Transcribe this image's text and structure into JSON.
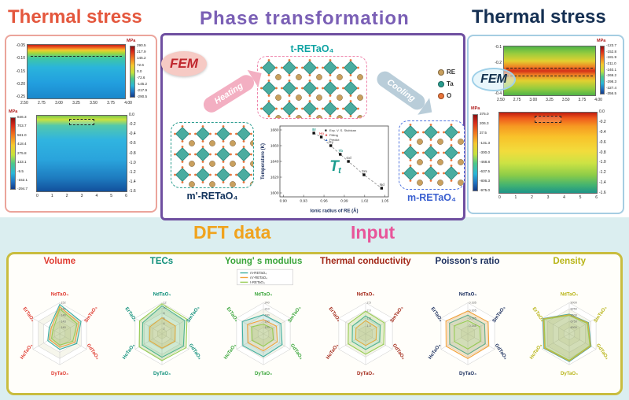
{
  "header": {
    "thermal_stress_left": "Thermal stress",
    "phase_transformation": "Phase  transformation",
    "thermal_stress_right": "Thermal stress"
  },
  "bottom_header": {
    "dft_data": "DFT data",
    "input": "Input"
  },
  "fem": {
    "left_label": "FEM",
    "right_label": "FEM"
  },
  "process": {
    "heating": "Heating",
    "cooling": "Cooling"
  },
  "phases": {
    "t": "t-RETaO₄",
    "m_prime": "m'-RETaO₄",
    "m": "m-RETaO₄"
  },
  "atom_legend": [
    {
      "label": "RE",
      "color": "#c9a05e"
    },
    {
      "label": "Ta",
      "color": "#2a9d8f"
    },
    {
      "label": "O",
      "color": "#e8743a"
    }
  ],
  "left_panel": {
    "plot_top": {
      "unit": "MPa",
      "colorbar_ticks": [
        "290.5",
        "217.9",
        "145.2",
        "72.6",
        "0.0",
        "-72.6",
        "-145.2",
        "-217.9",
        "-290.5"
      ],
      "x_ticks": [
        "2.50",
        "2.75",
        "3.00",
        "3.25",
        "3.50",
        "3.75",
        "4.00"
      ],
      "y_ticks": [
        "-0.05",
        "-0.10",
        "-0.15",
        "-0.20",
        "-0.25"
      ]
    },
    "plot_bottom": {
      "unit": "MPa",
      "colorbar_ticks": [
        "846.3",
        "703.7",
        "561.0",
        "418.4",
        "275.8",
        "133.1",
        "-9.5",
        "-152.1",
        "-294.7"
      ],
      "right_ticks": [
        "0.0",
        "-0.2",
        "-0.4",
        "-0.6",
        "-0.8",
        "-1.0",
        "-1.2",
        "-1.4",
        "-1.6"
      ],
      "x_ticks": [
        "0",
        "1",
        "2",
        "3",
        "4",
        "5",
        "6"
      ]
    }
  },
  "right_panel": {
    "plot_top": {
      "unit": "MPa",
      "colorbar_ticks": [
        "-123.7",
        "-152.8",
        "-181.9",
        "-211.0",
        "-240.1",
        "-269.2",
        "-298.3",
        "-327.4",
        "-356.5"
      ],
      "x_ticks": [
        "2.50",
        "2.75",
        "3.00",
        "3.25",
        "3.50",
        "3.75",
        "4.00"
      ],
      "y_ticks": [
        "-0.1",
        "-0.2",
        "-0.3",
        "-0.4"
      ]
    },
    "plot_bottom": {
      "unit": "MPa",
      "colorbar_ticks": [
        "375.0",
        "206.3",
        "37.5",
        "-131.3",
        "-300.0",
        "-468.8",
        "-637.5",
        "-806.3",
        "-975.0"
      ],
      "right_ticks": [
        "0.0",
        "-0.2",
        "-0.4",
        "-0.6",
        "-0.8",
        "-1.0",
        "-1.2",
        "-1.4",
        "-1.6"
      ],
      "x_ticks": [
        "0",
        "1",
        "2",
        "3",
        "4",
        "5",
        "6"
      ]
    }
  },
  "chart_data": [
    {
      "type": "scatter",
      "name": "phase-transformation-temperature",
      "title": "Tt",
      "xlabel": "Ionic radius of RE (Å)",
      "ylabel": "Temperature (K)",
      "xlim": [
        0.895,
        1.055
      ],
      "ylim": [
        1595,
        1685
      ],
      "x_ticks": [
        "0.90",
        "0.93",
        "0.96",
        "0.99",
        "1.02",
        "1.05"
      ],
      "y_ticks": [
        "1600",
        "1620",
        "1640",
        "1660",
        "1680"
      ],
      "legend": [
        "Exp. V. S. Stubican",
        "Fitting",
        "Predict"
      ],
      "legend_position": "top-right",
      "grid": false,
      "points": [
        {
          "label": "Er",
          "x": 0.945,
          "y": 1676,
          "color": "#2a9d8f"
        },
        {
          "label": "Ho",
          "x": 0.956,
          "y": 1671,
          "color": "#e06a6a"
        },
        {
          "label": "Dy",
          "x": 0.97,
          "y": 1660,
          "color": "#777777"
        },
        {
          "label": "Tb",
          "x": 0.984,
          "y": 1649,
          "color": "#2a9d8f"
        },
        {
          "label": "Gd",
          "x": 0.996,
          "y": 1640,
          "color": "#777777"
        },
        {
          "label": "Sm",
          "x": 1.019,
          "y": 1623,
          "color": "#777777"
        },
        {
          "label": "Nd",
          "x": 1.045,
          "y": 1606,
          "color": "#777777"
        }
      ]
    },
    {
      "type": "radar",
      "title": "Volume",
      "title_color": "#e03c31",
      "label_color": "#e03c31",
      "axes": [
        "NdTaO₄",
        "SmTaO₄",
        "GdTaO₄",
        "DyTaO₄",
        "HoTaO₄",
        "ErTaO₄"
      ],
      "rings": [
        140,
        143,
        146,
        149,
        152
      ],
      "ring_labels": [
        "140",
        "143",
        "146",
        "149",
        "152"
      ],
      "series": [
        {
          "name": "m-RETaO₄",
          "color": "#3fae9f",
          "values": [
            151.2,
            148.9,
            146.5,
            144.6,
            143.7,
            142.9
          ]
        },
        {
          "name": "m'-RETaO₄",
          "color": "#f2a23a",
          "values": [
            150.1,
            147.8,
            145.4,
            143.6,
            142.7,
            141.9
          ]
        },
        {
          "name": "t-RETaO₄",
          "color": "#97cc52",
          "values": [
            149.0,
            146.7,
            144.3,
            142.5,
            141.6,
            140.8
          ]
        }
      ]
    },
    {
      "type": "radar",
      "title": "TECs",
      "title_color": "#0f8f7a",
      "label_color": "#0f8f7a",
      "axes": [
        "NdTaO₄",
        "SmTaO₄",
        "GdTaO₄",
        "DyTaO₄",
        "HoTaO₄",
        "ErTaO₄"
      ],
      "rings": [
        2,
        4,
        6,
        8,
        10,
        12
      ],
      "ring_labels": [
        "2",
        "4",
        "6",
        "8",
        "10",
        "12"
      ],
      "series": [
        {
          "name": "m-RETaO₄",
          "color": "#3fae9f",
          "values": [
            10.8,
            10.2,
            9.6,
            9.1,
            8.8,
            8.6
          ]
        },
        {
          "name": "m'-RETaO₄",
          "color": "#f2a23a",
          "values": [
            6.2,
            6.0,
            5.8,
            5.6,
            5.5,
            5.4
          ]
        },
        {
          "name": "t-RETaO₄",
          "color": "#97cc52",
          "values": [
            11.6,
            11.2,
            10.8,
            10.4,
            10.2,
            10.0
          ]
        }
      ]
    },
    {
      "type": "radar",
      "title": "Young' s modulus",
      "title_color": "#3aa53a",
      "label_color": "#3aa53a",
      "show_legend": true,
      "axes": [
        "NdTaO₄",
        "SmTaO₄",
        "GdTaO₄",
        "DyTaO₄",
        "HoTaO₄",
        "ErTaO₄"
      ],
      "rings": [
        120,
        150,
        180,
        210,
        240
      ],
      "ring_labels": [
        "120",
        "150",
        "180",
        "210",
        "240"
      ],
      "series": [
        {
          "name": "m-RETaO₄",
          "color": "#3fae9f",
          "values": [
            182,
            188,
            195,
            201,
            205,
            208
          ]
        },
        {
          "name": "m'-RETaO₄",
          "color": "#f2a23a",
          "values": [
            158,
            163,
            168,
            173,
            176,
            179
          ]
        },
        {
          "name": "t-RETaO₄",
          "color": "#97cc52",
          "values": [
            136,
            141,
            146,
            151,
            154,
            157
          ]
        }
      ]
    },
    {
      "type": "radar",
      "title": "Thermal conductivity",
      "title_color": "#a32818",
      "label_color": "#a32818",
      "axes": [
        "NdTaO₄",
        "SmTaO₄",
        "GdTaO₄",
        "DyTaO₄",
        "HoTaO₄",
        "ErTaO₄"
      ],
      "rings": [
        1.0,
        1.5,
        2.0,
        2.5
      ],
      "ring_labels": [
        "1.0",
        "1.5",
        "2.0",
        "2.5"
      ],
      "series": [
        {
          "name": "m-RETaO₄",
          "color": "#3fae9f",
          "values": [
            1.65,
            1.6,
            1.55,
            1.52,
            1.5,
            1.48
          ]
        },
        {
          "name": "m'-RETaO₄",
          "color": "#f2a23a",
          "values": [
            1.35,
            1.32,
            1.28,
            1.26,
            1.24,
            1.22
          ]
        },
        {
          "name": "t-RETaO₄",
          "color": "#97cc52",
          "values": [
            1.95,
            1.9,
            1.85,
            1.82,
            1.8,
            1.78
          ]
        }
      ]
    },
    {
      "type": "radar",
      "title": "Poisson's ratio",
      "title_color": "#1b2f5e",
      "label_color": "#1b2f5e",
      "axes": [
        "NdTaO₄",
        "SmTaO₄",
        "GdTaO₄",
        "DyTaO₄",
        "HoTaO₄",
        "ErTaO₄"
      ],
      "rings": [
        0.245,
        0.275,
        0.305,
        0.335
      ],
      "ring_labels": [
        "0.245",
        "0.275",
        "0.305",
        "0.335"
      ],
      "series": [
        {
          "name": "m-RETaO₄",
          "color": "#3fae9f",
          "values": [
            0.287,
            0.29,
            0.293,
            0.295,
            0.296,
            0.297
          ]
        },
        {
          "name": "m'-RETaO₄",
          "color": "#f2a23a",
          "values": [
            0.303,
            0.306,
            0.309,
            0.311,
            0.312,
            0.313
          ]
        },
        {
          "name": "t-RETaO₄",
          "color": "#97cc52",
          "values": [
            0.266,
            0.269,
            0.272,
            0.274,
            0.275,
            0.276
          ]
        }
      ]
    },
    {
      "type": "radar",
      "title": "Density",
      "title_color": "#b8b416",
      "label_color": "#b8b416",
      "axes": [
        "NdTaO₄",
        "SmTaO₄",
        "GdTaO₄",
        "DyTaO₄",
        "HoTaO₄",
        "ErTaO₄"
      ],
      "rings": [
        6000,
        6750,
        7500,
        8250,
        9000
      ],
      "ring_labels": [
        "6000",
        "6750",
        "7500",
        "8250",
        "9000"
      ],
      "series": [
        {
          "name": "m-RETaO₄",
          "color": "#3fae9f",
          "values": [
            7620,
            7940,
            8310,
            8620,
            8790,
            8930
          ]
        },
        {
          "name": "m'-RETaO₄",
          "color": "#f2a23a",
          "values": [
            7540,
            7860,
            8230,
            8540,
            8710,
            8850
          ]
        },
        {
          "name": "t-RETaO₄",
          "color": "#97cc52",
          "values": [
            7450,
            7770,
            8140,
            8450,
            8620,
            8760
          ]
        }
      ]
    }
  ]
}
